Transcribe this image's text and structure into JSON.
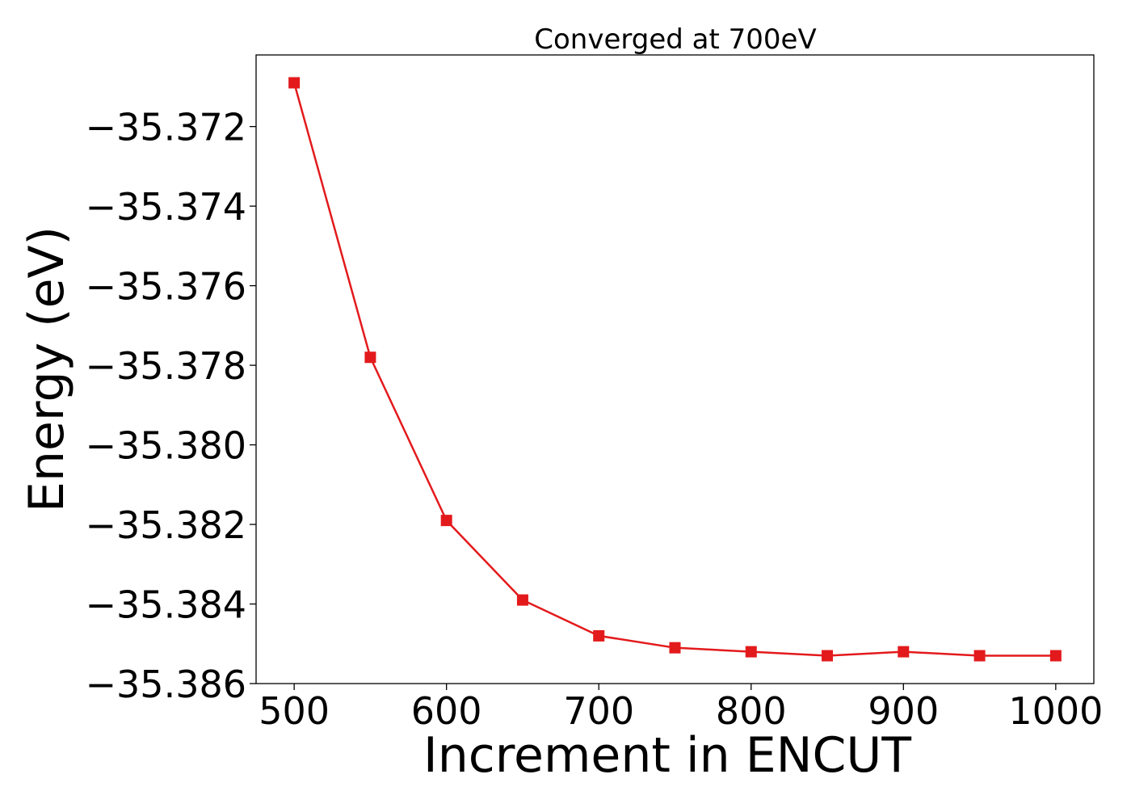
{
  "chart_data": {
    "type": "line",
    "title": "Converged at 700eV",
    "xlabel": "Increment in ENCUT",
    "ylabel": "Energy (eV)",
    "xlim": [
      475,
      1025
    ],
    "ylim": [
      -35.386,
      -35.3702
    ],
    "xticks": [
      500,
      600,
      700,
      800,
      900,
      1000
    ],
    "xtick_labels": [
      "500",
      "600",
      "700",
      "800",
      "900",
      "1000"
    ],
    "yticks": [
      -35.386,
      -35.384,
      -35.382,
      -35.38,
      -35.378,
      -35.376,
      -35.374,
      -35.372
    ],
    "ytick_labels": [
      "−35.386",
      "−35.384",
      "−35.382",
      "−35.380",
      "−35.378",
      "−35.376",
      "−35.374",
      "−35.372"
    ],
    "grid": false,
    "series": [
      {
        "marker": "square",
        "color": "#e31a1c",
        "x": [
          500,
          550,
          600,
          650,
          700,
          750,
          800,
          850,
          900,
          950,
          1000
        ],
        "y": [
          -35.3709,
          -35.3778,
          -35.3819,
          -35.3839,
          -35.3848,
          -35.3851,
          -35.3852,
          -35.3853,
          -35.3852,
          -35.3853,
          -35.3853
        ]
      }
    ]
  }
}
